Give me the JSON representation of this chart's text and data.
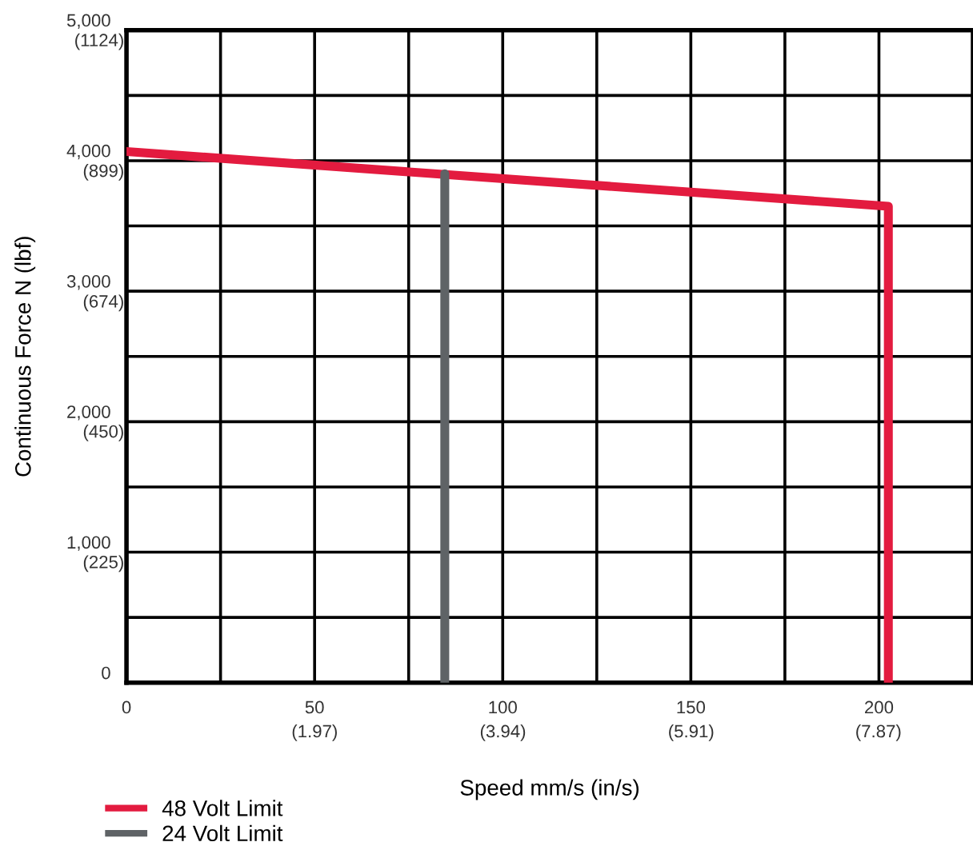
{
  "chart_data": {
    "type": "line",
    "xlabel": "Speed mm/s (in/s)",
    "ylabel": "Continuous Force N (lbf)",
    "series": [
      {
        "name": "48 Volt Limit",
        "color": "#e31b3f",
        "x": [
          0,
          202.5,
          202.5
        ],
        "values": [
          4070,
          3650,
          0
        ]
      },
      {
        "name": "24 Volt Limit",
        "color": "#5f6366",
        "x": [
          84.6,
          84.6
        ],
        "values": [
          3900,
          0
        ]
      }
    ],
    "xlim": [
      0,
      225
    ],
    "ylim": [
      0,
      5000
    ],
    "xticks": [
      0,
      {
        "value": 25,
        "label": null
      },
      50,
      {
        "value": 75,
        "label": null
      },
      100,
      {
        "value": 125,
        "label": null
      },
      150,
      {
        "value": 175,
        "label": null
      },
      200,
      {
        "value": 225,
        "label": null
      }
    ],
    "yticks": [
      0,
      {
        "value": 500,
        "label": null
      },
      {
        "value": 1000,
        "label": "1,000"
      },
      {
        "value": 1500,
        "label": null
      },
      {
        "value": 2000,
        "label": "2,000"
      },
      {
        "value": 2500,
        "label": null
      },
      {
        "value": 3000,
        "label": "3,000"
      },
      {
        "value": 3500,
        "label": null
      },
      {
        "value": 4000,
        "label": "4,000"
      },
      {
        "value": 4500,
        "label": null
      },
      {
        "value": 5000,
        "label": "5,000"
      }
    ],
    "x2lim": [
      0,
      8.86
    ],
    "x2ticks": [
      {
        "value": 1.97,
        "label": "(1.97)"
      },
      {
        "value": 3.94,
        "label": "(3.94)"
      },
      {
        "value": 5.91,
        "label": "(5.91)"
      },
      {
        "value": 7.87,
        "label": "(7.87)"
      }
    ],
    "y2lim": [
      0,
      1124
    ],
    "y2ticks": [
      {
        "value": 225,
        "label": "(225)"
      },
      {
        "value": 450,
        "label": "(450)"
      },
      {
        "value": 674,
        "label": "(674)"
      },
      {
        "value": 899,
        "label": "(899)"
      },
      {
        "value": 1124,
        "label": "(1124)"
      }
    ],
    "grid": true,
    "legend": "bottom left",
    "line_style": "solid",
    "marker": "none"
  }
}
